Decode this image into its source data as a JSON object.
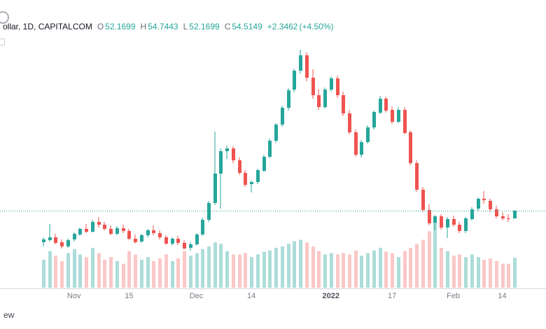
{
  "header": {
    "symbol_text": "ollar, 1D, CAPITALCOM",
    "ohlc": {
      "o_label": "O",
      "o": "52.1699",
      "h_label": "H",
      "h": "54.7443",
      "l_label": "L",
      "l": "52.1699",
      "c_label": "C",
      "c": "54.5149",
      "change": "+2.3462",
      "change_pct": "(+4.50%)"
    }
  },
  "watermark_fragment": "ew",
  "colors": {
    "up": "#26a69a",
    "down": "#ef5350",
    "up_volume": "rgba(38,166,154,0.38)",
    "down_volume": "rgba(239,83,80,0.32)",
    "price_line": "#26a69a",
    "axis_line": "#d1d4dc",
    "label": "#787b86"
  },
  "chart_data": {
    "type": "candlestick",
    "title": "ollar, 1D, CAPITALCOM",
    "timeframe": "1D",
    "exchange": "CAPITALCOM",
    "grid": false,
    "legend_position": "top-left",
    "last_bar": {
      "open": 52.1699,
      "high": 54.7443,
      "low": 52.1699,
      "close": 54.5149,
      "change": 2.3462,
      "change_pct": 4.5
    },
    "price_line_value": 54.5149,
    "y_range": [
      42.5,
      104
    ],
    "volume_pane": true,
    "x_axis_labels": [
      {
        "label": "Nov",
        "bar": 5,
        "major": false
      },
      {
        "label": "15",
        "bar": 14,
        "major": false
      },
      {
        "label": "Dec",
        "bar": 25,
        "major": false
      },
      {
        "label": "14",
        "bar": 34,
        "major": false
      },
      {
        "label": "2022",
        "bar": 47,
        "major": true
      },
      {
        "label": "17",
        "bar": 57,
        "major": false
      },
      {
        "label": "Feb",
        "bar": 67,
        "major": false
      },
      {
        "label": "14",
        "bar": 75,
        "major": false
      }
    ],
    "candles": [
      [
        45.0,
        46.5,
        43.8,
        45.8
      ],
      [
        45.8,
        50.6,
        45.2,
        46.6
      ],
      [
        46.6,
        47.6,
        44.4,
        45.0
      ],
      [
        45.0,
        45.8,
        43.2,
        43.8
      ],
      [
        43.8,
        46.2,
        43.4,
        45.7
      ],
      [
        45.7,
        48.0,
        45.2,
        47.5
      ],
      [
        47.5,
        49.6,
        47.0,
        49.1
      ],
      [
        49.1,
        50.6,
        47.7,
        48.3
      ],
      [
        48.3,
        51.8,
        48.0,
        51.2
      ],
      [
        51.2,
        52.6,
        49.6,
        50.3
      ],
      [
        50.3,
        51.2,
        48.6,
        49.1
      ],
      [
        49.1,
        50.1,
        47.1,
        47.6
      ],
      [
        47.6,
        49.9,
        47.2,
        49.3
      ],
      [
        49.3,
        50.3,
        47.9,
        48.5
      ],
      [
        48.5,
        49.1,
        45.6,
        46.1
      ],
      [
        46.1,
        47.3,
        44.6,
        45.1
      ],
      [
        45.1,
        47.6,
        44.9,
        47.1
      ],
      [
        47.1,
        49.1,
        46.6,
        48.6
      ],
      [
        48.6,
        50.1,
        47.1,
        47.7
      ],
      [
        47.7,
        48.6,
        45.9,
        46.5
      ],
      [
        46.5,
        47.1,
        44.1,
        44.6
      ],
      [
        44.6,
        46.6,
        43.9,
        46.1
      ],
      [
        46.1,
        46.9,
        44.3,
        44.9
      ],
      [
        44.9,
        45.6,
        42.9,
        43.3
      ],
      [
        43.3,
        45.0,
        42.6,
        44.4
      ],
      [
        44.4,
        47.9,
        43.9,
        47.3
      ],
      [
        47.3,
        52.4,
        46.9,
        51.8
      ],
      [
        51.8,
        57.6,
        51.2,
        56.9
      ],
      [
        56.9,
        78.6,
        56.3,
        65.8
      ],
      [
        65.8,
        73.4,
        55.2,
        72.6
      ],
      [
        72.6,
        74.4,
        70.2,
        73.4
      ],
      [
        73.4,
        74.0,
        69.0,
        69.8
      ],
      [
        69.8,
        70.6,
        65.3,
        66.0
      ],
      [
        66.0,
        66.8,
        61.9,
        62.5
      ],
      [
        62.5,
        63.8,
        60.2,
        63.2
      ],
      [
        63.2,
        67.4,
        62.7,
        66.8
      ],
      [
        66.8,
        71.6,
        66.2,
        71.0
      ],
      [
        71.0,
        76.4,
        70.5,
        75.8
      ],
      [
        75.8,
        81.2,
        75.2,
        80.6
      ],
      [
        80.6,
        86.4,
        80.0,
        85.7
      ],
      [
        85.7,
        91.8,
        85.0,
        91.1
      ],
      [
        91.1,
        97.6,
        90.4,
        96.9
      ],
      [
        96.9,
        103.3,
        96.2,
        101.6
      ],
      [
        101.6,
        102.6,
        93.8,
        94.9
      ],
      [
        94.9,
        97.4,
        88.6,
        89.6
      ],
      [
        89.6,
        91.4,
        85.2,
        86.1
      ],
      [
        86.1,
        91.9,
        85.6,
        91.3
      ],
      [
        91.3,
        95.4,
        90.6,
        94.6
      ],
      [
        94.6,
        95.6,
        88.8,
        89.6
      ],
      [
        89.6,
        90.6,
        83.2,
        84.0
      ],
      [
        84.0,
        85.1,
        77.6,
        78.3
      ],
      [
        78.3,
        79.2,
        70.9,
        71.6
      ],
      [
        71.6,
        76.0,
        70.8,
        75.4
      ],
      [
        75.4,
        80.4,
        74.9,
        79.8
      ],
      [
        79.8,
        85.0,
        79.2,
        84.4
      ],
      [
        84.4,
        89.3,
        83.8,
        88.6
      ],
      [
        88.6,
        89.1,
        84.3,
        85.1
      ],
      [
        85.1,
        86.2,
        80.8,
        81.5
      ],
      [
        81.5,
        85.9,
        81.0,
        85.2
      ],
      [
        85.2,
        86.0,
        77.6,
        78.3
      ],
      [
        78.3,
        79.0,
        68.3,
        69.0
      ],
      [
        69.0,
        69.8,
        60.3,
        61.0
      ],
      [
        61.0,
        61.8,
        54.2,
        54.9
      ],
      [
        54.9,
        56.4,
        50.2,
        50.9
      ],
      [
        50.9,
        53.4,
        48.6,
        52.8
      ],
      [
        52.8,
        53.6,
        48.9,
        49.5
      ],
      [
        49.5,
        52.6,
        46.3,
        52.0
      ],
      [
        52.0,
        53.1,
        49.7,
        50.4
      ],
      [
        50.4,
        51.3,
        47.8,
        48.4
      ],
      [
        48.4,
        52.7,
        47.9,
        52.2
      ],
      [
        52.2,
        55.7,
        51.7,
        55.1
      ],
      [
        55.1,
        58.7,
        54.6,
        58.1
      ],
      [
        58.1,
        60.6,
        56.7,
        57.6
      ],
      [
        57.6,
        58.2,
        54.2,
        55.0
      ],
      [
        55.0,
        56.1,
        52.2,
        52.9
      ],
      [
        52.9,
        54.1,
        51.6,
        52.3
      ],
      [
        52.3,
        53.6,
        51.1,
        52.2
      ],
      [
        52.1699,
        54.7443,
        52.1699,
        54.5149
      ]
    ],
    "volumes": [
      0.42,
      0.55,
      0.48,
      0.4,
      0.52,
      0.58,
      0.5,
      0.46,
      0.6,
      0.52,
      0.42,
      0.46,
      0.4,
      0.36,
      0.55,
      0.5,
      0.42,
      0.46,
      0.4,
      0.44,
      0.5,
      0.4,
      0.44,
      0.55,
      0.48,
      0.52,
      0.58,
      0.62,
      0.68,
      0.66,
      0.55,
      0.5,
      0.5,
      0.52,
      0.46,
      0.5,
      0.54,
      0.56,
      0.6,
      0.62,
      0.66,
      0.7,
      0.72,
      0.68,
      0.62,
      0.55,
      0.5,
      0.52,
      0.5,
      0.52,
      0.5,
      0.56,
      0.48,
      0.52,
      0.56,
      0.6,
      0.54,
      0.52,
      0.46,
      0.55,
      0.6,
      0.66,
      0.72,
      0.85,
      1.0,
      0.6,
      0.55,
      0.48,
      0.5,
      0.46,
      0.5,
      0.46,
      0.42,
      0.44,
      0.4,
      0.36,
      0.36,
      0.45
    ]
  }
}
